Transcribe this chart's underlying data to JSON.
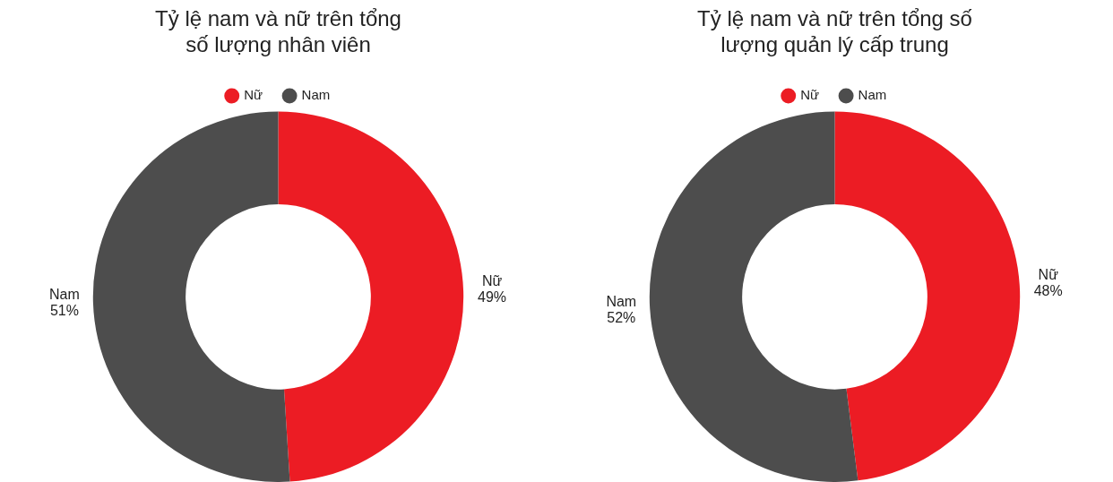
{
  "chart_data": [
    {
      "type": "donut",
      "title": "Tỷ lệ nam và nữ trên tổng số lượng nhân viên",
      "categories": [
        "Nữ",
        "Nam"
      ],
      "values": [
        49,
        51
      ],
      "colors": [
        "#ec1c24",
        "#4d4d4d"
      ],
      "value_labels": [
        "49%",
        "51%"
      ],
      "legend": "top"
    },
    {
      "type": "donut",
      "title": "Tỷ lệ nam và nữ trên tổng số lượng quản lý cấp trung",
      "categories": [
        "Nữ",
        "Nam"
      ],
      "values": [
        48,
        52
      ],
      "colors": [
        "#ec1c24",
        "#4d4d4d"
      ],
      "value_labels": [
        "48%",
        "52%"
      ],
      "legend": "top"
    }
  ]
}
